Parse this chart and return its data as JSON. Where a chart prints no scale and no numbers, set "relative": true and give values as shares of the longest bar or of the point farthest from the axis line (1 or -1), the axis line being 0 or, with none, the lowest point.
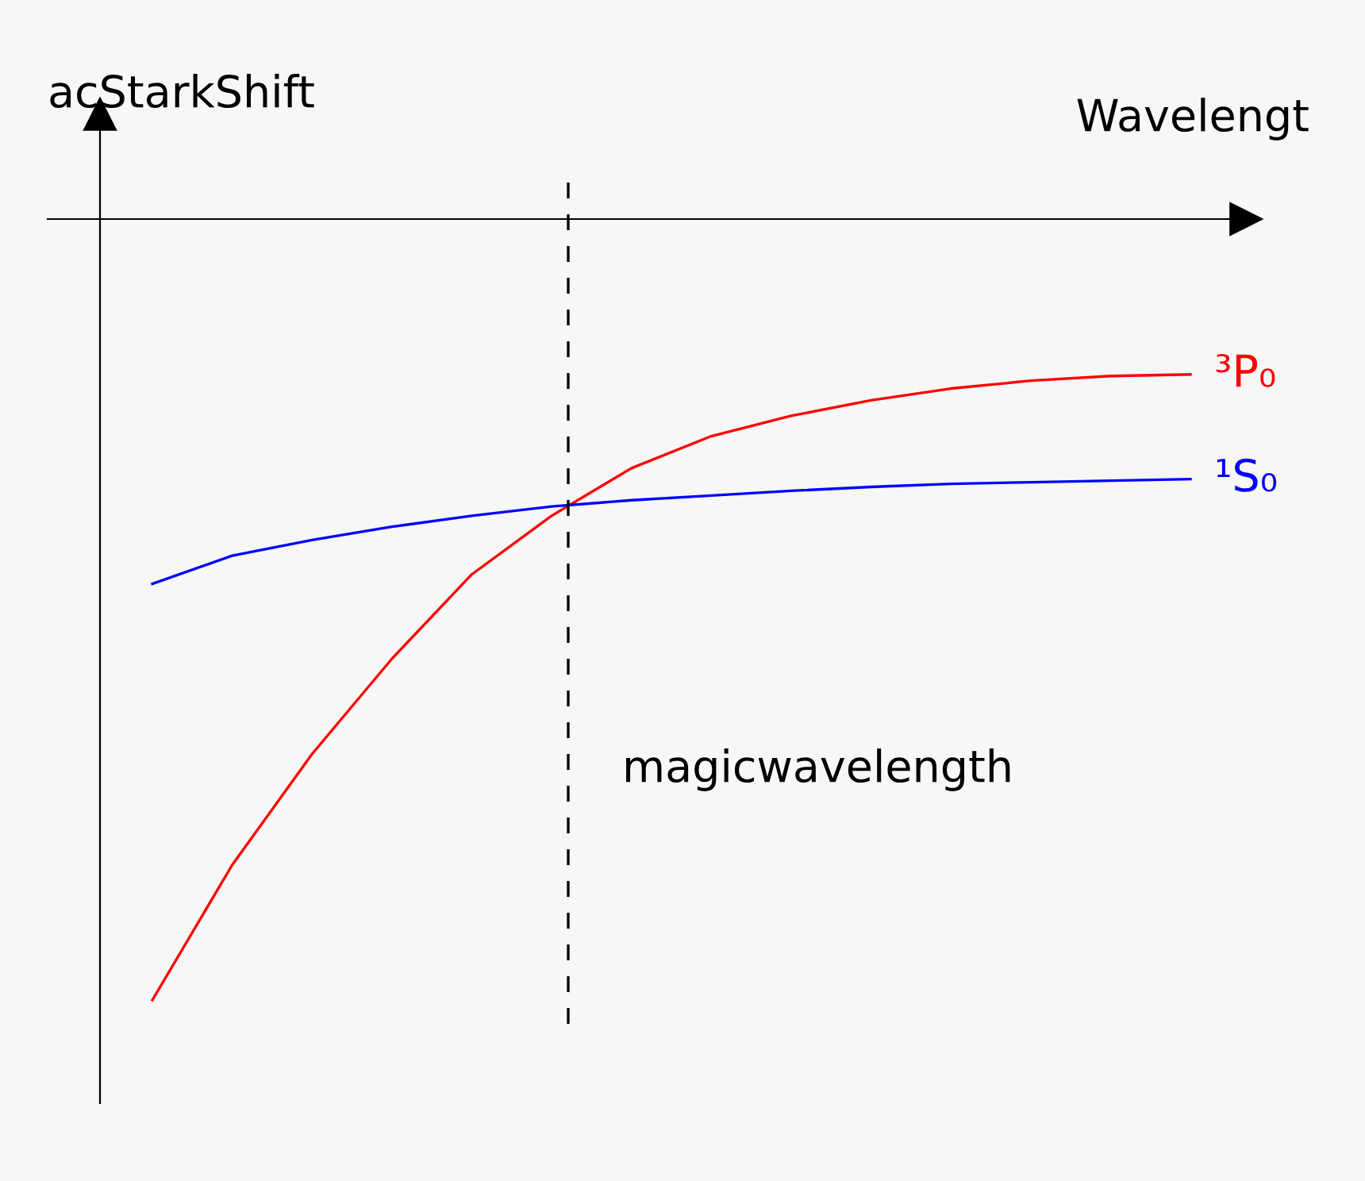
{
  "chart_data": {
    "type": "line",
    "relative": true,
    "xlabel": "Wavelengt",
    "ylabel": "acStarkShift",
    "categories": [
      null,
      null,
      null,
      null,
      null,
      null,
      null,
      null,
      null,
      null,
      null,
      null,
      null,
      null
    ],
    "series": [
      {
        "name": "³P₀",
        "color": "#ff0000",
        "values": [
          -1,
          -0.827,
          -0.685,
          -0.563,
          -0.455,
          -0.38,
          -0.319,
          -0.278,
          -0.252,
          -0.232,
          -0.217,
          -0.207,
          -0.201,
          -0.199
        ]
      },
      {
        "name": "¹S₀",
        "color": "#0000ff",
        "values": [
          -0.467,
          -0.431,
          -0.411,
          -0.394,
          -0.38,
          -0.368,
          -0.36,
          -0.354,
          -0.348,
          -0.343,
          -0.339,
          -0.337,
          -0.335,
          -0.333
        ]
      }
    ],
    "annotations": [
      "magicwavelength"
    ],
    "marker": "none",
    "line_style": "solid"
  }
}
